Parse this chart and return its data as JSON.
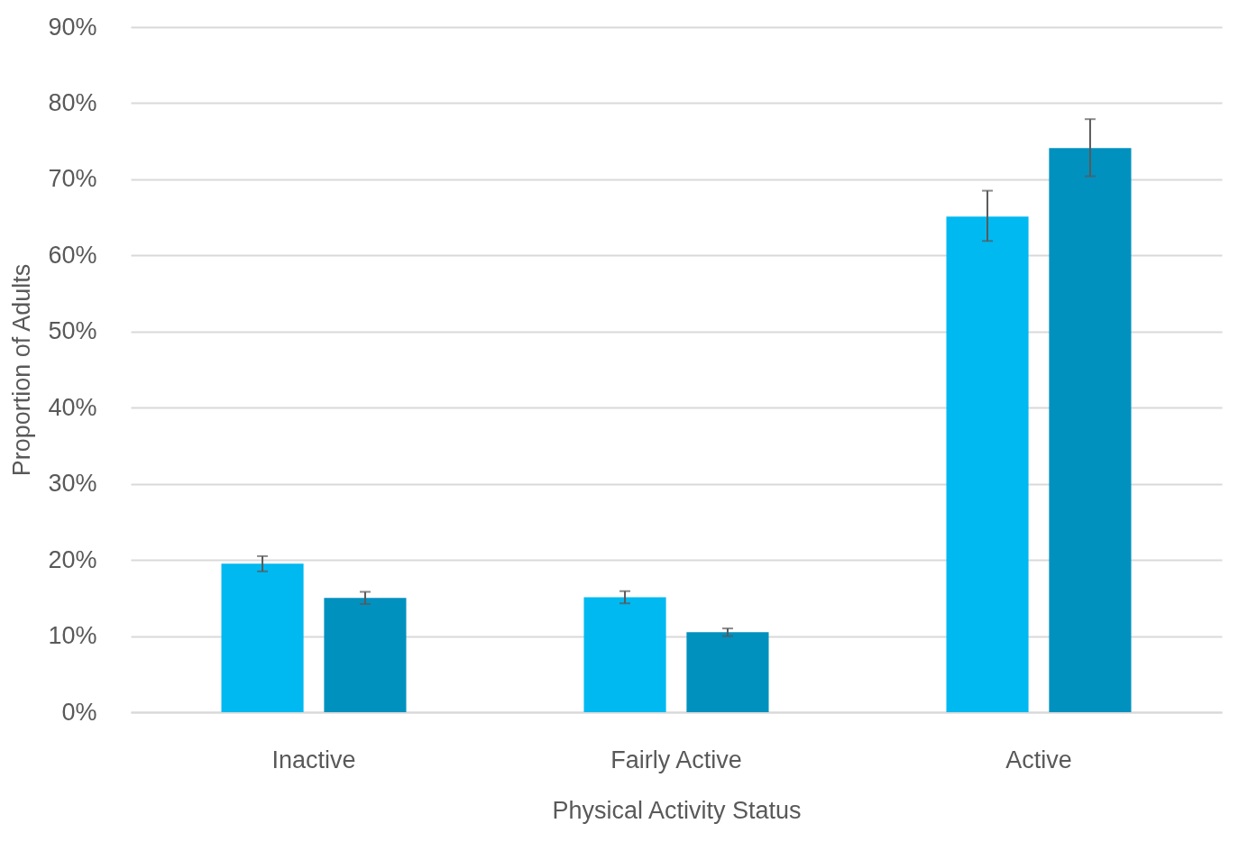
{
  "chart_data": {
    "type": "bar",
    "xlabel": "Physical Activity Status",
    "ylabel": "Proportion of Adults",
    "categories": [
      "Inactive",
      "Fairly Active",
      "Active"
    ],
    "series": [
      {
        "color": "#00b9f0",
        "values": [
          19.5,
          15.1,
          65.1
        ],
        "errors": [
          [
            18.5,
            20.5
          ],
          [
            14.3,
            15.9
          ],
          [
            61.9,
            68.5
          ]
        ]
      },
      {
        "color": "#0091bf",
        "values": [
          15.0,
          10.5,
          74.1
        ],
        "errors": [
          [
            14.2,
            15.8
          ],
          [
            10.0,
            11.0
          ],
          [
            70.4,
            77.9
          ]
        ]
      }
    ],
    "ylim": [
      0,
      90
    ],
    "yticks": [
      {
        "value": 0,
        "label": "0%"
      },
      {
        "value": 10,
        "label": "10%"
      },
      {
        "value": 20,
        "label": "20%"
      },
      {
        "value": 30,
        "label": "30%"
      },
      {
        "value": 40,
        "label": "40%"
      },
      {
        "value": 50,
        "label": "50%"
      },
      {
        "value": 60,
        "label": "60%"
      },
      {
        "value": 70,
        "label": "70%"
      },
      {
        "value": 80,
        "label": "80%"
      },
      {
        "value": 90,
        "label": "90%"
      }
    ],
    "grid": "y",
    "legend": false
  }
}
